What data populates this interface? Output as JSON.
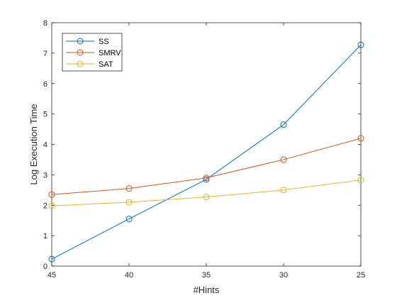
{
  "chart_data": {
    "type": "line",
    "title": "",
    "xlabel": "#Hints",
    "ylabel": "Log Execution Time",
    "x": [
      45,
      40,
      35,
      30,
      25
    ],
    "xlim": [
      45,
      25
    ],
    "x_reversed": true,
    "ylim": [
      0,
      8
    ],
    "xticks": [
      "45",
      "40",
      "35",
      "30",
      "25"
    ],
    "yticks": [
      "0",
      "1",
      "2",
      "3",
      "4",
      "5",
      "6",
      "7",
      "8"
    ],
    "grid": false,
    "legend_position": "top-left",
    "series": [
      {
        "name": "SS",
        "color": "#0072BD",
        "marker": "circle",
        "values": [
          0.23,
          1.55,
          2.85,
          4.65,
          7.27
        ]
      },
      {
        "name": "SMRV",
        "color": "#D95319",
        "marker": "circle",
        "values": [
          2.35,
          2.55,
          2.9,
          3.5,
          4.2
        ]
      },
      {
        "name": "SAT",
        "color": "#EDB120",
        "marker": "circle",
        "values": [
          1.98,
          2.1,
          2.27,
          2.5,
          2.83
        ]
      }
    ]
  }
}
